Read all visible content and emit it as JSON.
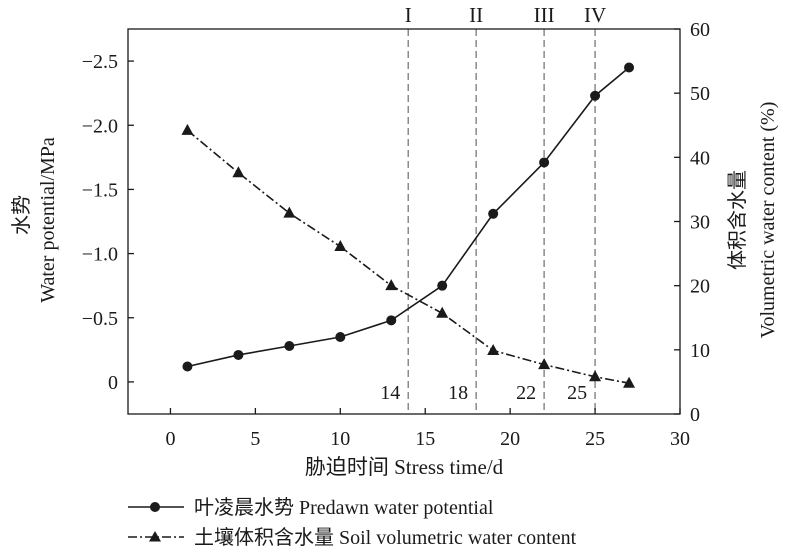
{
  "chart_data": {
    "type": "line",
    "x": [
      1,
      4,
      7,
      10,
      13,
      16,
      19,
      22,
      25,
      27
    ],
    "xlabel": "胁迫时间 Stress time/d",
    "xlim": [
      -2.5,
      30
    ],
    "xticks": [
      "0",
      "5",
      "10",
      "15",
      "20",
      "25",
      "30"
    ],
    "ylabel_left": [
      "水势",
      "Water potential/MPa"
    ],
    "ylim_left": [
      0.25,
      -2.75
    ],
    "yticks_left": [
      "0",
      "−0.5",
      "−1.0",
      "−1.5",
      "−2.0",
      "−2.5"
    ],
    "ylabel_right": [
      "体积含水量",
      "Volumetric water content (%)"
    ],
    "ylim_right": [
      0,
      60
    ],
    "yticks_right": [
      "0",
      "10",
      "20",
      "30",
      "40",
      "50",
      "60"
    ],
    "series": [
      {
        "name": "叶凌晨水势 Predawn water potential",
        "axis": "left",
        "marker": "circle",
        "linestyle": "solid",
        "x": [
          1,
          4,
          7,
          10,
          13,
          16,
          19,
          22,
          25,
          27
        ],
        "values": [
          -0.12,
          -0.21,
          -0.28,
          -0.35,
          -0.48,
          -0.75,
          -1.31,
          -1.71,
          -2.23,
          -2.45
        ]
      },
      {
        "name": "土壤体积含水量 Soil volumetric water content",
        "axis": "right",
        "marker": "triangle",
        "linestyle": "dashdot",
        "x": [
          1,
          4,
          7,
          10,
          13,
          16,
          19,
          22,
          25,
          27
        ],
        "values": [
          44.2,
          37.6,
          31.3,
          26.1,
          20.0,
          15.7,
          9.9,
          7.7,
          5.8,
          4.8
        ]
      }
    ],
    "stages": [
      {
        "day": 14,
        "roman": "I",
        "label": "14"
      },
      {
        "day": 18,
        "roman": "II",
        "label": "18"
      },
      {
        "day": 22,
        "roman": "III",
        "label": "22"
      },
      {
        "day": 25,
        "roman": "IV",
        "label": "25"
      }
    ]
  }
}
